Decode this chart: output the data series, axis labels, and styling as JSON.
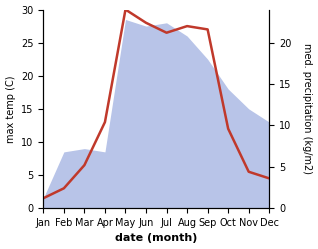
{
  "months": [
    "Jan",
    "Feb",
    "Mar",
    "Apr",
    "May",
    "Jun",
    "Jul",
    "Aug",
    "Sep",
    "Oct",
    "Nov",
    "Dec"
  ],
  "temperature": [
    1.5,
    3.0,
    6.5,
    13.0,
    30.0,
    28.0,
    26.5,
    27.5,
    27.0,
    12.0,
    5.5,
    4.5
  ],
  "precipitation": [
    1.5,
    8.5,
    9.0,
    8.5,
    28.5,
    27.5,
    28.0,
    26.0,
    22.5,
    18.0,
    15.0,
    13.0
  ],
  "temp_color": "#c0392b",
  "precip_fill_color": "#b8c4e8",
  "temp_ylim": [
    0,
    30
  ],
  "ylabel_left": "max temp (C)",
  "ylabel_right": "med. precipitation (kg/m2)",
  "xlabel": "date (month)",
  "left_yticks": [
    0,
    5,
    10,
    15,
    20,
    25,
    30
  ],
  "right_yticks_pos": [
    0,
    6.25,
    12.5,
    18.75,
    25
  ],
  "right_yticklabels": [
    "0",
    "5",
    "10",
    "15",
    "20"
  ],
  "bg_color": "#ffffff"
}
